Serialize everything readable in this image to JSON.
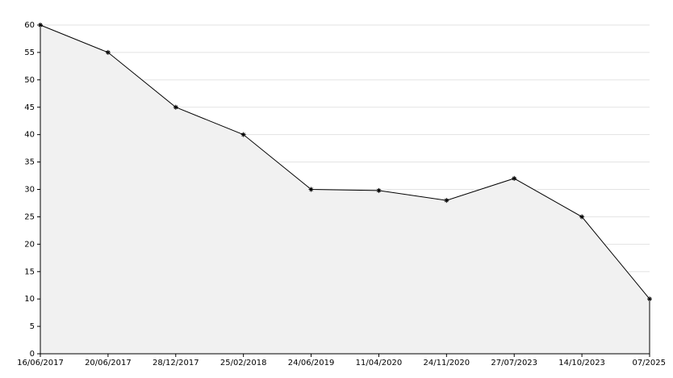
{
  "chart_data": {
    "type": "area",
    "categories": [
      "16/06/2017",
      "20/06/2017",
      "28/12/2017",
      "25/02/2018",
      "24/06/2019",
      "11/04/2020",
      "24/11/2020",
      "27/07/2023",
      "14/10/2023",
      "07/2025"
    ],
    "values": [
      60,
      55,
      45,
      40,
      30,
      29.8,
      28,
      32,
      25,
      10
    ],
    "color": "#000000",
    "fill": "#f1f1f1",
    "ylim": [
      0,
      60
    ],
    "yticks": [
      0,
      5,
      10,
      15,
      20,
      25,
      30,
      35,
      40,
      45,
      50,
      55,
      60
    ],
    "grid": true
  }
}
